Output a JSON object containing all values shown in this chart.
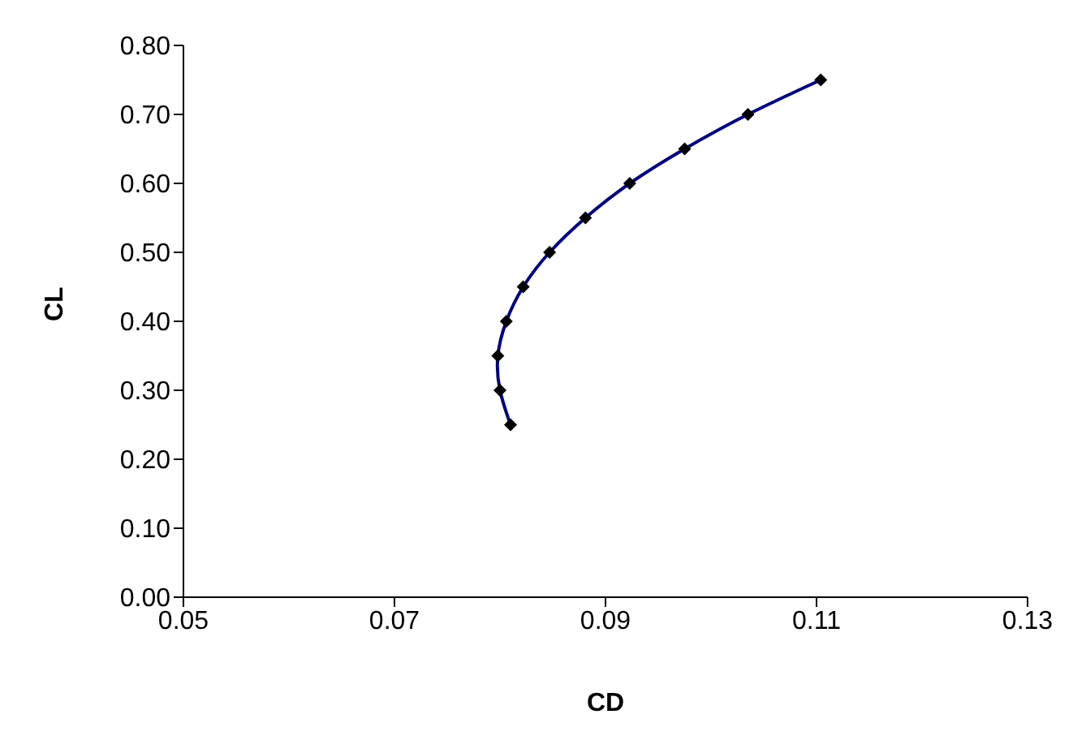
{
  "chart_data": {
    "type": "line",
    "xlabel": "CD",
    "ylabel": "CL",
    "x": [
      0.081,
      0.08,
      0.0798,
      0.0806,
      0.0822,
      0.0847,
      0.0881,
      0.0923,
      0.0975,
      0.1035,
      0.1104
    ],
    "series": [
      {
        "color": "#000080",
        "values": [
          0.25,
          0.3,
          0.35,
          0.4,
          0.45,
          0.5,
          0.55,
          0.6,
          0.65,
          0.7,
          0.75
        ]
      }
    ],
    "marker": "diamond",
    "line_style": "solid",
    "xlim": [
      0.05,
      0.13
    ],
    "xticks": [
      0.05,
      0.07,
      0.09,
      0.11,
      0.13
    ],
    "ylim": [
      0,
      0.8
    ],
    "yticks": [
      {
        "value": 0,
        "label": "0.00"
      },
      {
        "value": 0.1,
        "label": "0.10"
      },
      {
        "value": 0.2,
        "label": "0.20"
      },
      {
        "value": 0.3,
        "label": "0.30"
      },
      {
        "value": 0.4,
        "label": "0.40"
      },
      {
        "value": 0.5,
        "label": "0.50"
      },
      {
        "value": 0.6,
        "label": "0.60"
      },
      {
        "value": 0.7,
        "label": "0.70"
      },
      {
        "value": 0.8,
        "label": "0.80"
      }
    ]
  }
}
